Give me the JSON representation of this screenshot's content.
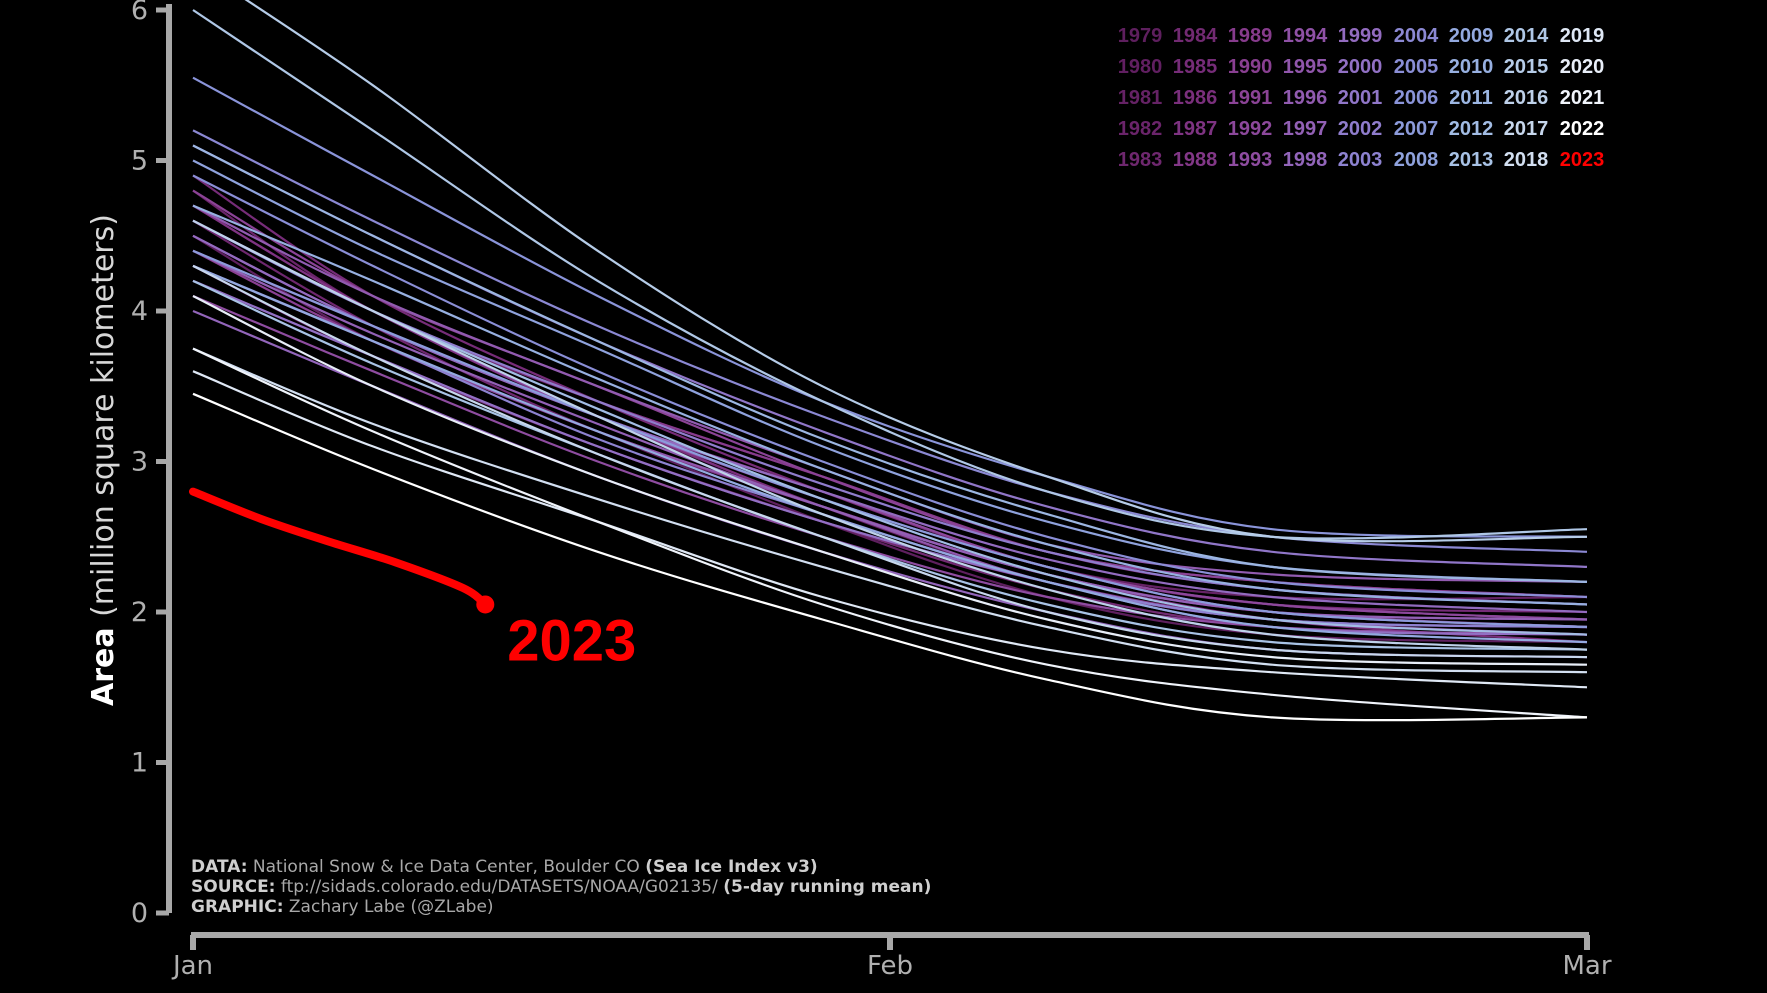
{
  "chart_data": {
    "type": "line",
    "ylabel_bold": "Area",
    "ylabel_rest": "(million square kilometers)",
    "ylim": [
      0,
      6
    ],
    "yticks": [
      0,
      1,
      2,
      3,
      4,
      5,
      6
    ],
    "xticks": [
      {
        "day": 0,
        "label": "Jan"
      },
      {
        "day": 31,
        "label": "Feb"
      },
      {
        "day": 62,
        "label": "Mar"
      }
    ],
    "xlim": [
      0,
      62
    ],
    "highlight": {
      "name": "2023",
      "label": "2023",
      "color": "#ff0000",
      "x": [
        0,
        3,
        6,
        9,
        12,
        13
      ],
      "y": [
        2.8,
        2.62,
        2.47,
        2.33,
        2.16,
        2.05
      ]
    },
    "series": [
      {
        "name": "1979",
        "color": "#5e1f5e",
        "x": [
          0,
          8,
          18,
          28,
          38,
          48,
          62
        ],
        "y": [
          4.5,
          3.8,
          3.2,
          2.6,
          2.1,
          1.85,
          1.8
        ]
      },
      {
        "name": "1980",
        "color": "#611f61",
        "x": [
          0,
          8,
          18,
          28,
          38,
          48,
          62
        ],
        "y": [
          4.7,
          4.0,
          3.3,
          2.7,
          2.2,
          1.95,
          1.9
        ]
      },
      {
        "name": "1981",
        "color": "#652265",
        "x": [
          0,
          8,
          18,
          28,
          38,
          48,
          62
        ],
        "y": [
          4.4,
          3.9,
          3.3,
          2.8,
          2.3,
          2.1,
          2.1
        ]
      },
      {
        "name": "1982",
        "color": "#6a246a",
        "x": [
          0,
          8,
          18,
          28,
          38,
          48,
          62
        ],
        "y": [
          4.8,
          4.0,
          3.4,
          2.9,
          2.4,
          2.2,
          2.1
        ]
      },
      {
        "name": "1983",
        "color": "#6e276e",
        "x": [
          0,
          8,
          18,
          28,
          38,
          48,
          62
        ],
        "y": [
          4.6,
          3.9,
          3.2,
          2.7,
          2.25,
          2.0,
          1.95
        ]
      },
      {
        "name": "1984",
        "color": "#722a72",
        "x": [
          0,
          8,
          18,
          28,
          38,
          48,
          62
        ],
        "y": [
          4.3,
          3.7,
          3.1,
          2.6,
          2.15,
          1.9,
          1.85
        ]
      },
      {
        "name": "1985",
        "color": "#762c78",
        "x": [
          0,
          8,
          18,
          28,
          38,
          48,
          62
        ],
        "y": [
          4.9,
          4.1,
          3.4,
          2.8,
          2.3,
          2.05,
          2.0
        ]
      },
      {
        "name": "1986",
        "color": "#7a2f7c",
        "x": [
          0,
          8,
          18,
          28,
          38,
          48,
          62
        ],
        "y": [
          4.5,
          3.9,
          3.3,
          2.7,
          2.25,
          1.95,
          1.8
        ]
      },
      {
        "name": "1987",
        "color": "#7e3382",
        "x": [
          0,
          8,
          18,
          28,
          38,
          48,
          62
        ],
        "y": [
          4.7,
          4.0,
          3.3,
          2.8,
          2.3,
          2.05,
          1.95
        ]
      },
      {
        "name": "1988",
        "color": "#823787",
        "x": [
          0,
          8,
          18,
          28,
          38,
          48,
          62
        ],
        "y": [
          4.2,
          3.7,
          3.1,
          2.6,
          2.2,
          1.95,
          1.85
        ]
      },
      {
        "name": "1989",
        "color": "#863b8c",
        "x": [
          0,
          8,
          18,
          28,
          38,
          48,
          62
        ],
        "y": [
          4.6,
          4.0,
          3.4,
          2.9,
          2.4,
          2.15,
          2.05
        ]
      },
      {
        "name": "1990",
        "color": "#893f91",
        "x": [
          0,
          8,
          18,
          28,
          38,
          48,
          62
        ],
        "y": [
          4.4,
          3.8,
          3.2,
          2.7,
          2.25,
          2.0,
          1.9
        ]
      },
      {
        "name": "1991",
        "color": "#8b4396",
        "x": [
          0,
          8,
          18,
          28,
          38,
          48,
          62
        ],
        "y": [
          4.8,
          4.1,
          3.5,
          2.9,
          2.4,
          2.2,
          2.1
        ]
      },
      {
        "name": "1992",
        "color": "#8c489b",
        "x": [
          0,
          8,
          18,
          28,
          38,
          48,
          62
        ],
        "y": [
          4.5,
          3.9,
          3.3,
          2.8,
          2.3,
          2.05,
          1.95
        ]
      },
      {
        "name": "1993",
        "color": "#8e4ca0",
        "x": [
          0,
          8,
          18,
          28,
          38,
          48,
          62
        ],
        "y": [
          4.1,
          3.6,
          3.0,
          2.5,
          2.1,
          1.9,
          1.85
        ]
      },
      {
        "name": "1994",
        "color": "#8f51a6",
        "x": [
          0,
          8,
          18,
          28,
          38,
          48,
          62
        ],
        "y": [
          4.6,
          4.0,
          3.3,
          2.75,
          2.3,
          2.0,
          1.9
        ]
      },
      {
        "name": "1995",
        "color": "#9056ab",
        "x": [
          0,
          8,
          18,
          28,
          38,
          48,
          62
        ],
        "y": [
          4.3,
          3.8,
          3.2,
          2.7,
          2.2,
          1.95,
          1.9
        ]
      },
      {
        "name": "1996",
        "color": "#915bb0",
        "x": [
          0,
          8,
          18,
          28,
          38,
          48,
          62
        ],
        "y": [
          4.7,
          4.1,
          3.5,
          2.95,
          2.45,
          2.25,
          2.2
        ]
      },
      {
        "name": "1997",
        "color": "#9260b5",
        "x": [
          0,
          8,
          18,
          28,
          38,
          48,
          62
        ],
        "y": [
          4.4,
          3.85,
          3.25,
          2.7,
          2.25,
          2.0,
          1.95
        ]
      },
      {
        "name": "1998",
        "color": "#9265ba",
        "x": [
          0,
          8,
          18,
          28,
          38,
          48,
          62
        ],
        "y": [
          4.0,
          3.5,
          2.9,
          2.4,
          2.0,
          1.75,
          1.7
        ]
      },
      {
        "name": "1999",
        "color": "#926bbf",
        "x": [
          0,
          8,
          18,
          28,
          38,
          48,
          62
        ],
        "y": [
          4.5,
          3.9,
          3.3,
          2.8,
          2.35,
          2.1,
          2.0
        ]
      },
      {
        "name": "2000",
        "color": "#9170c4",
        "x": [
          0,
          8,
          18,
          28,
          38,
          48,
          62
        ],
        "y": [
          4.2,
          3.7,
          3.1,
          2.6,
          2.2,
          1.9,
          1.85
        ]
      },
      {
        "name": "2001",
        "color": "#9076c8",
        "x": [
          0,
          8,
          18,
          28,
          38,
          48,
          62
        ],
        "y": [
          5.1,
          4.5,
          3.8,
          3.2,
          2.7,
          2.4,
          2.3
        ]
      },
      {
        "name": "2002",
        "color": "#8f7ccc",
        "x": [
          0,
          8,
          18,
          28,
          38,
          48,
          62
        ],
        "y": [
          4.6,
          4.0,
          3.4,
          2.85,
          2.4,
          2.15,
          2.05
        ]
      },
      {
        "name": "2003",
        "color": "#8d82d0",
        "x": [
          0,
          8,
          18,
          28,
          38,
          48,
          62
        ],
        "y": [
          4.3,
          3.8,
          3.15,
          2.65,
          2.2,
          1.95,
          1.9
        ]
      },
      {
        "name": "2004",
        "color": "#8b88d3",
        "x": [
          0,
          8,
          18,
          28,
          38,
          48,
          62
        ],
        "y": [
          5.2,
          4.6,
          3.9,
          3.3,
          2.8,
          2.5,
          2.4
        ]
      },
      {
        "name": "2005",
        "color": "#8a8ed6",
        "x": [
          0,
          8,
          18,
          28,
          38,
          48,
          62
        ],
        "y": [
          4.9,
          4.3,
          3.6,
          3.0,
          2.5,
          2.2,
          2.1
        ]
      },
      {
        "name": "2006",
        "color": "#8a94d9",
        "x": [
          0,
          8,
          18,
          28,
          38,
          48,
          62
        ],
        "y": [
          5.55,
          4.9,
          4.1,
          3.4,
          2.9,
          2.55,
          2.5
        ]
      },
      {
        "name": "2007",
        "color": "#8c9bdb",
        "x": [
          0,
          8,
          18,
          28,
          38,
          48,
          62
        ],
        "y": [
          4.4,
          3.9,
          3.3,
          2.75,
          2.3,
          2.0,
          1.9
        ]
      },
      {
        "name": "2008",
        "color": "#8fa2dd",
        "x": [
          0,
          8,
          18,
          28,
          38,
          48,
          62
        ],
        "y": [
          5.0,
          4.4,
          3.75,
          3.1,
          2.6,
          2.3,
          2.2
        ]
      },
      {
        "name": "2009",
        "color": "#93a9df",
        "x": [
          0,
          8,
          18,
          28,
          38,
          48,
          62
        ],
        "y": [
          4.3,
          3.8,
          3.2,
          2.65,
          2.2,
          1.9,
          1.8
        ]
      },
      {
        "name": "2010",
        "color": "#97b0e1",
        "x": [
          0,
          8,
          18,
          28,
          38,
          48,
          62
        ],
        "y": [
          4.7,
          4.2,
          3.55,
          2.95,
          2.45,
          2.15,
          2.05
        ]
      },
      {
        "name": "2011",
        "color": "#9cb6e2",
        "x": [
          0,
          8,
          18,
          28,
          38,
          48,
          62
        ],
        "y": [
          5.1,
          4.5,
          3.8,
          3.15,
          2.65,
          2.3,
          2.2
        ]
      },
      {
        "name": "2012",
        "color": "#a2bce4",
        "x": [
          0,
          8,
          18,
          28,
          38,
          48,
          62
        ],
        "y": [
          4.6,
          4.0,
          3.35,
          2.75,
          2.25,
          1.95,
          1.85
        ]
      },
      {
        "name": "2013",
        "color": "#a8c2e5",
        "x": [
          0,
          8,
          18,
          28,
          38,
          48,
          62
        ],
        "y": [
          4.2,
          3.65,
          3.05,
          2.5,
          2.05,
          1.8,
          1.75
        ]
      },
      {
        "name": "2014",
        "color": "#afc7e6",
        "x": [
          0,
          8,
          18,
          28,
          38,
          48,
          62
        ],
        "y": [
          6.0,
          5.2,
          4.2,
          3.4,
          2.8,
          2.5,
          2.55
        ]
      },
      {
        "name": "2015",
        "color": "#b6cce8",
        "x": [
          0,
          8,
          18,
          28,
          38,
          48,
          62
        ],
        "y": [
          6.3,
          5.5,
          4.4,
          3.5,
          2.9,
          2.5,
          2.5
        ]
      },
      {
        "name": "2016",
        "color": "#bed1ea",
        "x": [
          0,
          8,
          18,
          28,
          38,
          48,
          62
        ],
        "y": [
          4.6,
          4.0,
          3.3,
          2.65,
          2.15,
          1.85,
          1.75
        ]
      },
      {
        "name": "2017",
        "color": "#c7d7ed",
        "x": [
          0,
          8,
          18,
          28,
          38,
          48,
          62
        ],
        "y": [
          4.3,
          3.7,
          3.05,
          2.5,
          2.0,
          1.75,
          1.7
        ]
      },
      {
        "name": "2018",
        "color": "#d2dff1",
        "x": [
          0,
          8,
          18,
          28,
          38,
          48,
          62
        ],
        "y": [
          3.75,
          3.25,
          2.75,
          2.3,
          1.9,
          1.65,
          1.6
        ]
      },
      {
        "name": "2019",
        "color": "#dfe8f5",
        "x": [
          0,
          8,
          18,
          28,
          38,
          48,
          62
        ],
        "y": [
          3.6,
          3.1,
          2.6,
          2.1,
          1.75,
          1.6,
          1.5
        ]
      },
      {
        "name": "2020",
        "color": "#e8eef8",
        "x": [
          0,
          8,
          18,
          28,
          38,
          48,
          62
        ],
        "y": [
          4.1,
          3.5,
          2.9,
          2.4,
          1.95,
          1.7,
          1.65
        ]
      },
      {
        "name": "2021",
        "color": "#f0f4fb",
        "x": [
          0,
          8,
          18,
          28,
          38,
          48,
          62
        ],
        "y": [
          3.75,
          3.2,
          2.6,
          2.05,
          1.65,
          1.45,
          1.3
        ]
      },
      {
        "name": "2022",
        "color": "#ffffff",
        "x": [
          0,
          8,
          18,
          28,
          38,
          48,
          62
        ],
        "y": [
          3.45,
          2.95,
          2.4,
          1.95,
          1.55,
          1.3,
          1.3
        ]
      }
    ],
    "legend": {
      "placement": "top-right",
      "rows": [
        [
          {
            "t": "1979",
            "c": "#5e1f5e"
          },
          {
            "t": "1984",
            "c": "#722a72"
          },
          {
            "t": "1989",
            "c": "#863b8c"
          },
          {
            "t": "1994",
            "c": "#8f51a6"
          },
          {
            "t": "1999",
            "c": "#926bbf"
          },
          {
            "t": "2004",
            "c": "#8b88d3"
          },
          {
            "t": "2009",
            "c": "#93a9df"
          },
          {
            "t": "2014",
            "c": "#afc7e6"
          },
          {
            "t": "2019",
            "c": "#dfe8f5"
          }
        ],
        [
          {
            "t": "1980",
            "c": "#611f61"
          },
          {
            "t": "1985",
            "c": "#762c78"
          },
          {
            "t": "1990",
            "c": "#893f91"
          },
          {
            "t": "1995",
            "c": "#9056ab"
          },
          {
            "t": "2000",
            "c": "#9170c4"
          },
          {
            "t": "2005",
            "c": "#8a8ed6"
          },
          {
            "t": "2010",
            "c": "#97b0e1"
          },
          {
            "t": "2015",
            "c": "#b6cce8"
          },
          {
            "t": "2020",
            "c": "#e8eef8"
          }
        ],
        [
          {
            "t": "1981",
            "c": "#652265"
          },
          {
            "t": "1986",
            "c": "#7a2f7c"
          },
          {
            "t": "1991",
            "c": "#8b4396"
          },
          {
            "t": "1996",
            "c": "#915bb0"
          },
          {
            "t": "2001",
            "c": "#9076c8"
          },
          {
            "t": "2006",
            "c": "#8a94d9"
          },
          {
            "t": "2011",
            "c": "#9cb6e2"
          },
          {
            "t": "2016",
            "c": "#bed1ea"
          },
          {
            "t": "2021",
            "c": "#f0f4fb"
          }
        ],
        [
          {
            "t": "1982",
            "c": "#6a246a"
          },
          {
            "t": "1987",
            "c": "#7e3382"
          },
          {
            "t": "1992",
            "c": "#8c489b"
          },
          {
            "t": "1997",
            "c": "#9260b5"
          },
          {
            "t": "2002",
            "c": "#8f7ccc"
          },
          {
            "t": "2007",
            "c": "#8c9bdb"
          },
          {
            "t": "2012",
            "c": "#a2bce4"
          },
          {
            "t": "2017",
            "c": "#c7d7ed"
          },
          {
            "t": "2022",
            "c": "#ffffff"
          }
        ],
        [
          {
            "t": "1983",
            "c": "#6e276e"
          },
          {
            "t": "1988",
            "c": "#823787"
          },
          {
            "t": "1993",
            "c": "#8e4ca0"
          },
          {
            "t": "1998",
            "c": "#9265ba"
          },
          {
            "t": "2003",
            "c": "#8d82d0"
          },
          {
            "t": "2008",
            "c": "#8fa2dd"
          },
          {
            "t": "2013",
            "c": "#a8c2e5"
          },
          {
            "t": "2018",
            "c": "#d2dff1"
          },
          {
            "t": "2023",
            "c": "#ff0000"
          }
        ]
      ]
    },
    "credits": [
      {
        "bold": "DATA:",
        "text": " National Snow & Ice Data Center, Boulder CO ",
        "extra": "(Sea Ice Index v3)"
      },
      {
        "bold": "SOURCE:",
        "text": " ftp://sidads.colorado.edu/DATASETS/NOAA/G02135/ ",
        "extra": "(5-day running mean)"
      },
      {
        "bold": "GRAPHIC:",
        "text": " Zachary Labe (@ZLabe)",
        "extra": ""
      }
    ],
    "colors": {
      "background": "#000000",
      "axis": "#a8a8a8",
      "highlight": "#ff0000"
    }
  }
}
